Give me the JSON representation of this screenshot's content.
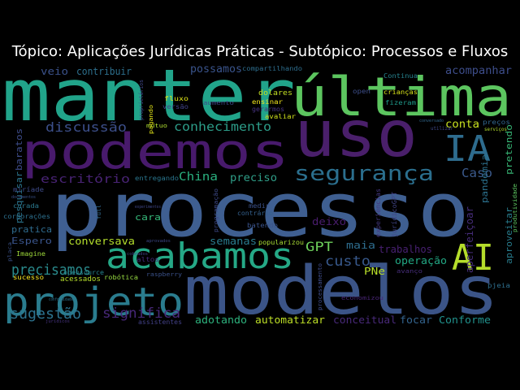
{
  "chart_data": {
    "type": "wordcloud",
    "title": "Tópico: Aplicações Jurídicas Práticas - Subtópico: Processos e Fluxos",
    "background": "#000000",
    "words": [
      {
        "text": "processo",
        "weight": 1.0,
        "color": "#3f5f91"
      },
      {
        "text": "modelos",
        "weight": 0.9,
        "color": "#3b5487"
      },
      {
        "text": "manter",
        "weight": 0.85,
        "color": "#21a48a"
      },
      {
        "text": "uso",
        "weight": 0.8,
        "color": "#4a1f6b"
      },
      {
        "text": "última",
        "weight": 0.75,
        "color": "#5cc55f"
      },
      {
        "text": "podemos",
        "weight": 0.7,
        "color": "#481a6c"
      },
      {
        "text": "acabamos",
        "weight": 0.55,
        "color": "#25a886"
      },
      {
        "text": "projeto",
        "weight": 0.55,
        "color": "#2a7c8e"
      },
      {
        "text": "AI",
        "weight": 0.5,
        "color": "#b5dd2b"
      },
      {
        "text": "IA",
        "weight": 0.45,
        "color": "#2e6c8e"
      },
      {
        "text": "segurança",
        "weight": 0.4,
        "color": "#2b6f8e"
      },
      {
        "text": "precisamos",
        "weight": 0.3,
        "color": "#2a8a8c"
      },
      {
        "text": "sugestão",
        "weight": 0.28,
        "color": "#2c728e"
      },
      {
        "text": "significa",
        "weight": 0.26,
        "color": "#472878"
      },
      {
        "text": "discussão",
        "weight": 0.24,
        "color": "#3c4f8a"
      },
      {
        "text": "conhecimento",
        "weight": 0.24,
        "color": "#2c9c88"
      },
      {
        "text": "custo",
        "weight": 0.22,
        "color": "#38598c"
      },
      {
        "text": "GPT",
        "weight": 0.22,
        "color": "#6ccd5a"
      },
      {
        "text": "escritório",
        "weight": 0.2,
        "color": "#482374"
      },
      {
        "text": "China",
        "weight": 0.2,
        "color": "#2ab07f"
      },
      {
        "text": "Caso",
        "weight": 0.2,
        "color": "#3b5a8c"
      },
      {
        "text": "conta",
        "weight": 0.18,
        "color": "#c8e020"
      },
      {
        "text": "preciso",
        "weight": 0.16,
        "color": "#2f9e88"
      },
      {
        "text": "possamos",
        "weight": 0.16,
        "color": "#3a548c"
      },
      {
        "text": "acompanhar",
        "weight": 0.16,
        "color": "#3d4d8a"
      },
      {
        "text": "contribuir",
        "weight": 0.15,
        "color": "#2d708e"
      },
      {
        "text": "veio",
        "weight": 0.15,
        "color": "#3b528b"
      },
      {
        "text": "conversava",
        "weight": 0.15,
        "color": "#b4de2c"
      },
      {
        "text": "semanas",
        "weight": 0.15,
        "color": "#2a7b8e"
      },
      {
        "text": "deixo",
        "weight": 0.15,
        "color": "#4a1d6e"
      },
      {
        "text": "maia",
        "weight": 0.14,
        "color": "#2e6d8e"
      },
      {
        "text": "trabalhos",
        "weight": 0.14,
        "color": "#482072"
      },
      {
        "text": "operação",
        "weight": 0.14,
        "color": "#22a884"
      },
      {
        "text": "PNe",
        "weight": 0.13,
        "color": "#b8de29"
      },
      {
        "text": "adotando",
        "weight": 0.15,
        "color": "#2db27d"
      },
      {
        "text": "automatizar",
        "weight": 0.15,
        "color": "#bddf26"
      },
      {
        "text": "conceitual",
        "weight": 0.15,
        "color": "#482979"
      },
      {
        "text": "focar",
        "weight": 0.15,
        "color": "#33638d"
      },
      {
        "text": "Conforme",
        "weight": 0.15,
        "color": "#21918c"
      },
      {
        "text": "aperfeiçoar",
        "weight": 0.13,
        "color": "#472d7b"
      },
      {
        "text": "pandemia",
        "weight": 0.12,
        "color": "#2c718e"
      },
      {
        "text": "pretendo",
        "weight": 0.12,
        "color": "#38b977"
      },
      {
        "text": "aproveitar",
        "weight": 0.12,
        "color": "#287d8e"
      },
      {
        "text": "baratos",
        "weight": 0.12,
        "color": "#3e4c8a"
      },
      {
        "text": "pesquisar",
        "weight": 0.12,
        "color": "#2b758e"
      },
      {
        "text": "pratica",
        "weight": 0.12,
        "color": "#2f6b8e"
      },
      {
        "text": "Espero",
        "weight": 0.12,
        "color": "#3a548c"
      },
      {
        "text": "cara",
        "weight": 0.11,
        "color": "#35b779"
      },
      {
        "text": "dolares",
        "weight": 0.1,
        "color": "#c2df23"
      },
      {
        "text": "ensinar",
        "weight": 0.1,
        "color": "#f1e51d"
      },
      {
        "text": "avaliar",
        "weight": 0.1,
        "color": "#d0e11c"
      },
      {
        "text": "gerarmos",
        "weight": 0.1,
        "color": "#46327e"
      },
      {
        "text": "fluxo",
        "weight": 0.1,
        "color": "#dde318"
      },
      {
        "text": "versão",
        "weight": 0.09,
        "color": "#404387"
      },
      {
        "text": "aumento",
        "weight": 0.08,
        "color": "#3e4989"
      },
      {
        "text": "compartilhando",
        "weight": 0.08,
        "color": "#2e6e8e"
      },
      {
        "text": "Continua",
        "weight": 0.08,
        "color": "#26828e"
      },
      {
        "text": "crianças",
        "weight": 0.08,
        "color": "#d8e219"
      },
      {
        "text": "fizeram",
        "weight": 0.08,
        "color": "#1f998a"
      },
      {
        "text": "open",
        "weight": 0.08,
        "color": "#3d4e8a"
      },
      {
        "text": "entregando",
        "weight": 0.08,
        "color": "#2a768e"
      },
      {
        "text": "preços",
        "weight": 0.08,
        "color": "#31668e"
      },
      {
        "text": "proprietários",
        "weight": 0.07,
        "color": "#3f4788"
      },
      {
        "text": "mutuo",
        "weight": 0.07,
        "color": "#addc30"
      },
      {
        "text": "pagando",
        "weight": 0.07,
        "color": "#e2e418"
      },
      {
        "text": "utilizar",
        "weight": 0.06,
        "color": "#3f4889"
      },
      {
        "text": "serviços",
        "weight": 0.06,
        "color": "#b2dd2d"
      },
      {
        "text": "medir",
        "weight": 0.08,
        "color": "#3b528b"
      },
      {
        "text": "contrário",
        "weight": 0.08,
        "color": "#34608d"
      },
      {
        "text": "batendo",
        "weight": 0.08,
        "color": "#3a538b"
      },
      {
        "text": "popularizou",
        "weight": 0.08,
        "color": "#a8db34"
      },
      {
        "text": "experiências",
        "weight": 0.08,
        "color": "#453882"
      },
      {
        "text": "jurídicoGPT",
        "weight": 0.07,
        "color": "#404588"
      },
      {
        "text": "produtividade",
        "weight": 0.06,
        "color": "#5ec962"
      },
      {
        "text": "programação",
        "weight": 0.07,
        "color": "#3e4a89"
      },
      {
        "text": "processamento",
        "weight": 0.07,
        "color": "#3e4c8a"
      },
      {
        "text": "curada",
        "weight": 0.08,
        "color": "#2a788e"
      },
      {
        "text": "corporações",
        "weight": 0.08,
        "color": "#2d708e"
      },
      {
        "text": "Imagine",
        "weight": 0.08,
        "color": "#9fda3a"
      },
      {
        "text": "sucesso",
        "weight": 0.08,
        "color": "#f8e621"
      },
      {
        "text": "acessados",
        "weight": 0.09,
        "color": "#b5de2b"
      },
      {
        "text": "robótica",
        "weight": 0.08,
        "color": "#95d840"
      },
      {
        "text": "opensource",
        "weight": 0.08,
        "color": "#25848e"
      },
      {
        "text": "altos",
        "weight": 0.08,
        "color": "#472a7a"
      },
      {
        "text": "assistentes",
        "weight": 0.08,
        "color": "#424086"
      },
      {
        "text": "raspberry",
        "weight": 0.07,
        "color": "#3b528b"
      },
      {
        "text": "economizou",
        "weight": 0.07,
        "color": "#482576"
      },
      {
        "text": "avanço",
        "weight": 0.07,
        "color": "#472e7c"
      },
      {
        "text": "pjeia",
        "weight": 0.07,
        "color": "#2e6f8e"
      },
      {
        "text": "miríade",
        "weight": 0.06,
        "color": "#3e4a89"
      },
      {
        "text": "documentos",
        "weight": 0.05,
        "color": "#3b528b"
      },
      {
        "text": "full",
        "weight": 0.07,
        "color": "#31688e"
      },
      {
        "text": "experimentos",
        "weight": 0.05,
        "color": "#3f4788"
      },
      {
        "text": "cobrados",
        "weight": 0.05,
        "color": "#414487"
      },
      {
        "text": "aprovados",
        "weight": 0.05,
        "color": "#3e4989"
      },
      {
        "text": "placa",
        "weight": 0.06,
        "color": "#3b528b"
      },
      {
        "text": "conformidade",
        "weight": 0.05,
        "color": "#2c728e"
      },
      {
        "text": "jurídicos",
        "weight": 0.05,
        "color": "#46337f"
      },
      {
        "text": "conversado",
        "weight": 0.05,
        "color": "#31688e"
      }
    ]
  }
}
